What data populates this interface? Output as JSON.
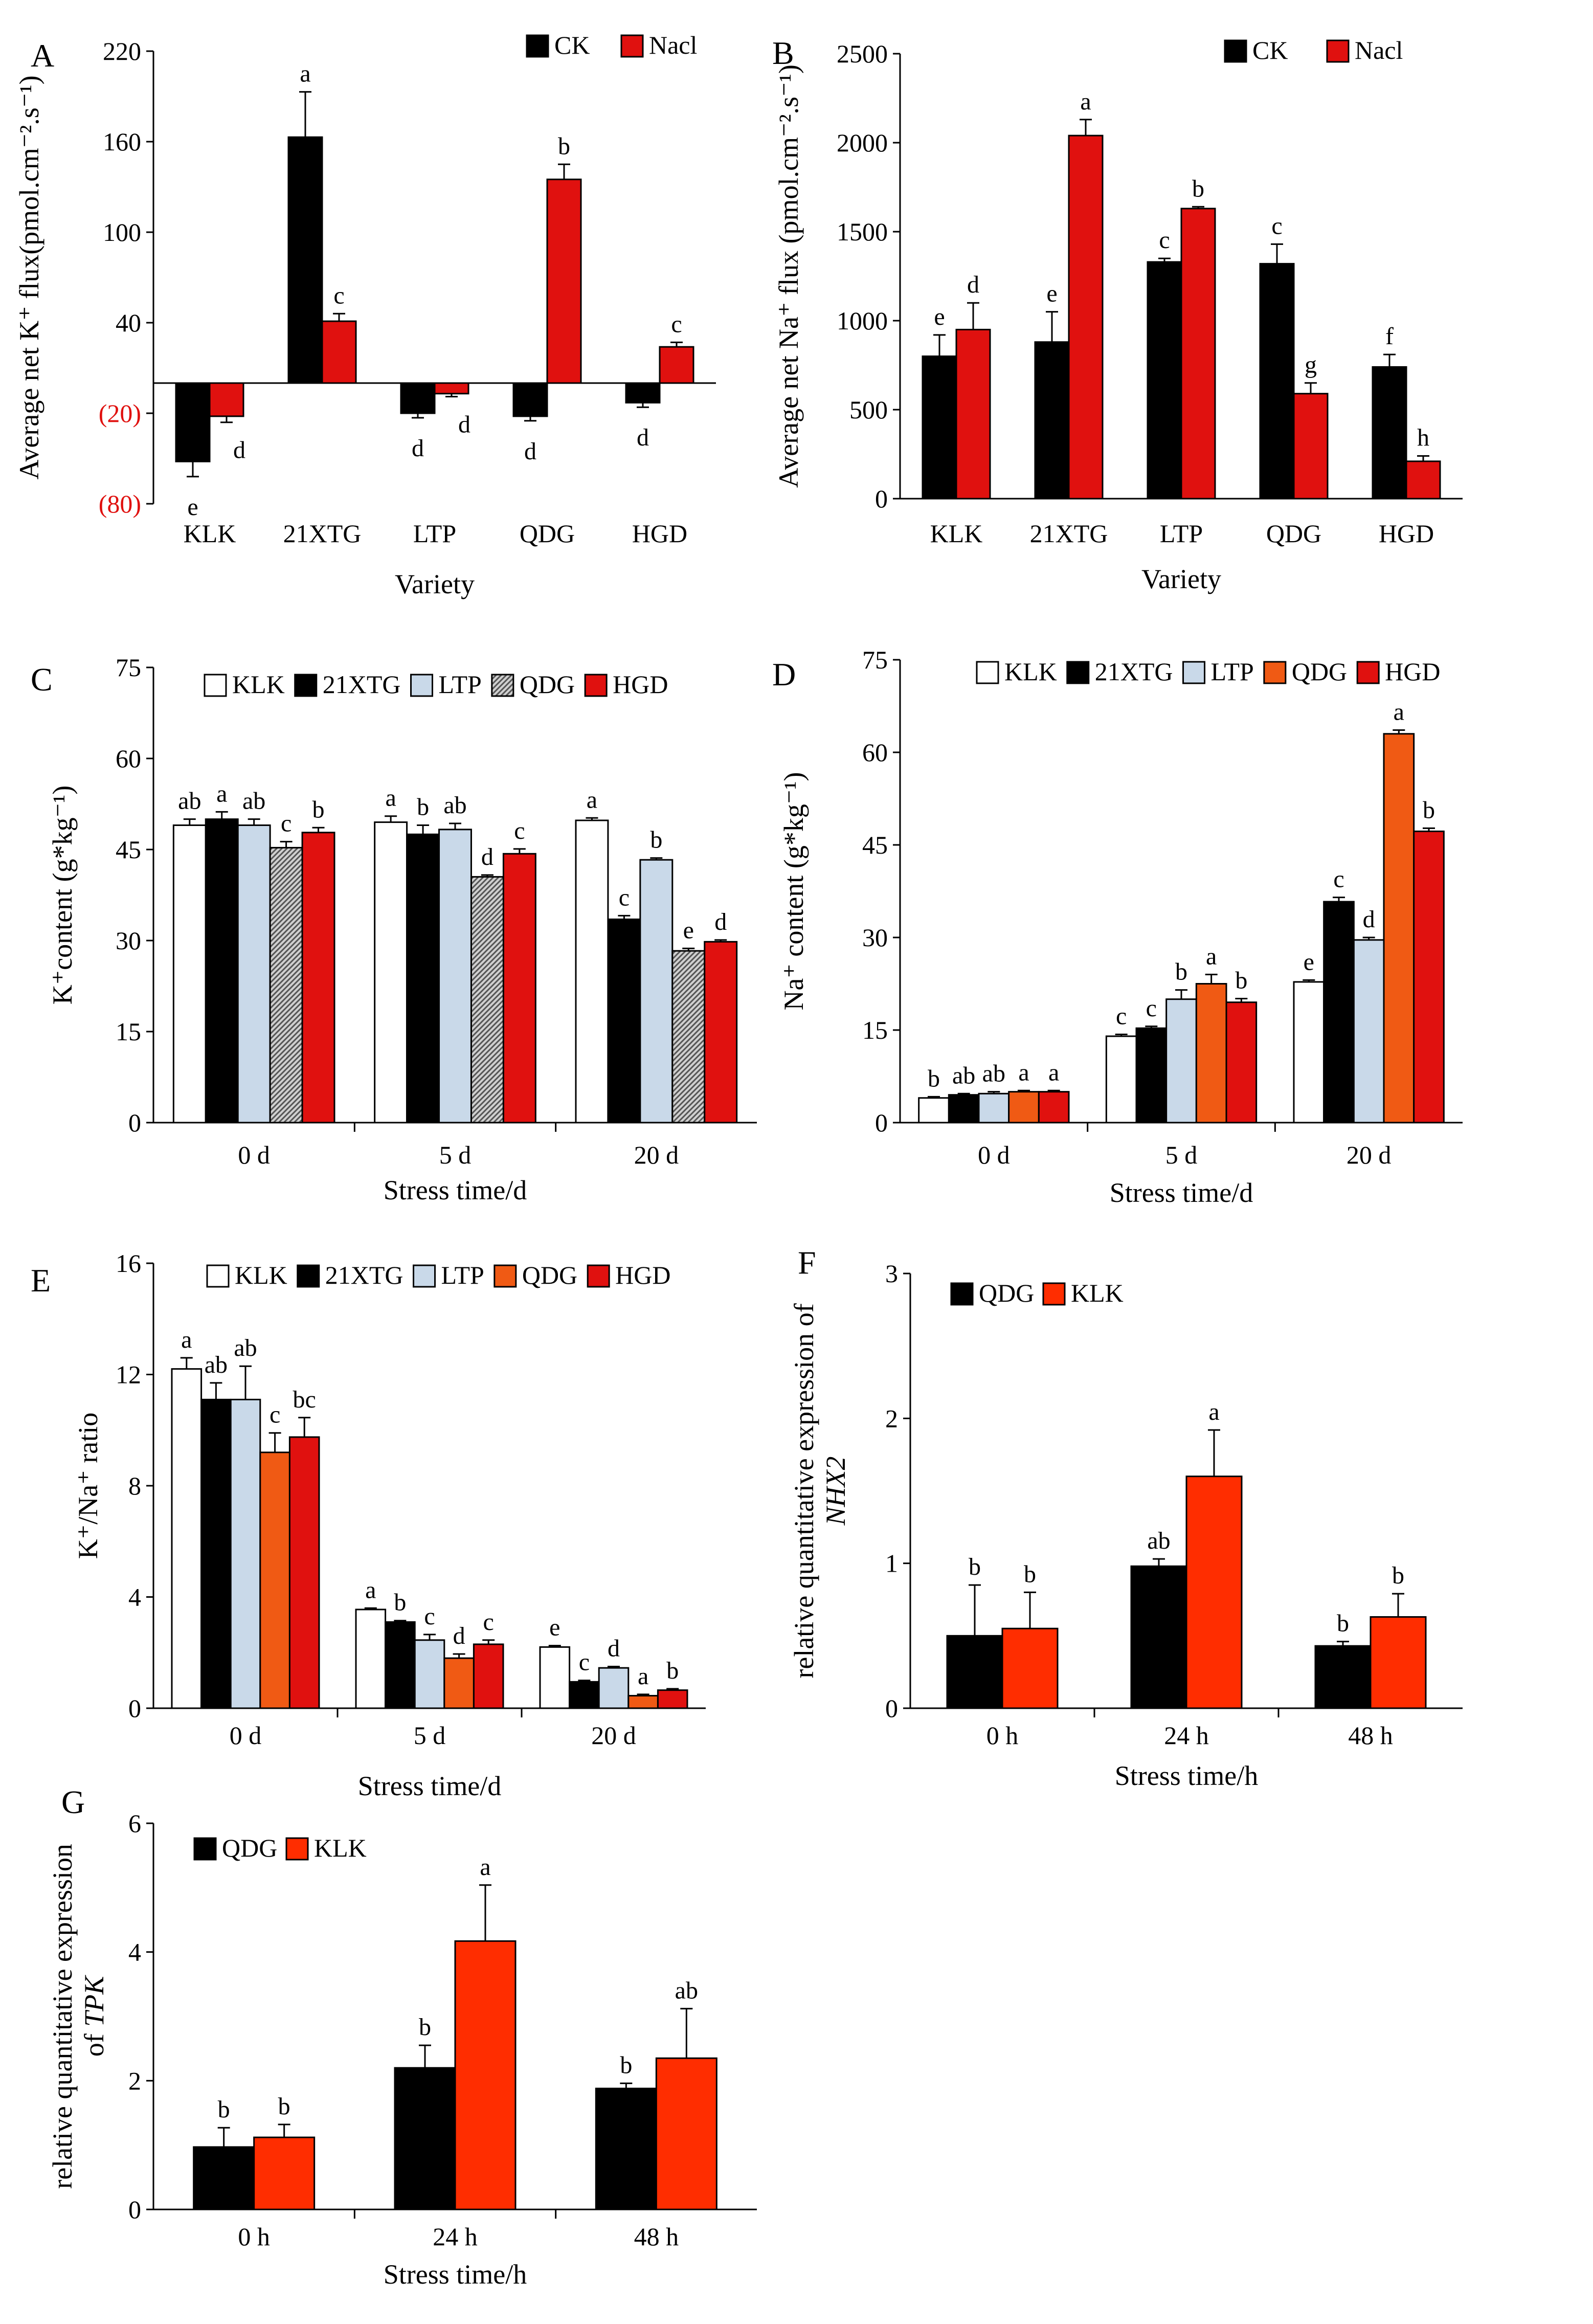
{
  "colors": {
    "black": "#000000",
    "red": "#e0110f",
    "red_orange": "#ff2d00",
    "white": "#ffffff",
    "light_blue": "#c9d9e9",
    "hatched_gray": "#8a8a8a",
    "orange": "#f05a14",
    "negative_tick": "#e0110f"
  },
  "chart_data": [
    {
      "panel": "A",
      "type": "bar",
      "xlabel": "Variety",
      "ylabel": "Average net K⁺ flux(pmol.cm⁻².s⁻¹)",
      "ylim": [
        -80,
        220
      ],
      "yticks": [
        220,
        160,
        100,
        40,
        -20,
        -80
      ],
      "ytick_labels": [
        "220",
        "160",
        "100",
        "40",
        "(20)",
        "(80)"
      ],
      "negative_ticks_red": true,
      "categories": [
        "KLK",
        "21XTG",
        "LTP",
        "QDG",
        "HGD"
      ],
      "series": [
        {
          "name": "CK",
          "color": "black",
          "values": [
            -52,
            163,
            -20,
            -22,
            -13
          ],
          "errors": [
            10,
            30,
            3,
            3,
            3
          ],
          "letters": [
            "e",
            "a",
            "d",
            "d",
            "d"
          ]
        },
        {
          "name": "Nacl",
          "color": "red",
          "values": [
            -22,
            41,
            -7,
            135,
            24
          ],
          "errors": [
            4,
            5,
            2,
            10,
            3
          ],
          "letters": [
            "d",
            "c",
            "d",
            "b",
            "c"
          ]
        }
      ],
      "legend": [
        "CK",
        "Nacl"
      ]
    },
    {
      "panel": "B",
      "type": "bar",
      "xlabel": "Variety",
      "ylabel": "Average net Na⁺ flux (pmol.cm⁻².s⁻¹)",
      "ylim": [
        0,
        2500
      ],
      "yticks": [
        0,
        500,
        1000,
        1500,
        2000,
        2500
      ],
      "categories": [
        "KLK",
        "21XTG",
        "LTP",
        "QDG",
        "HGD"
      ],
      "series": [
        {
          "name": "CK",
          "color": "black",
          "values": [
            800,
            880,
            1330,
            1320,
            740
          ],
          "errors": [
            120,
            170,
            20,
            110,
            70
          ],
          "letters": [
            "e",
            "e",
            "c",
            "c",
            "f"
          ]
        },
        {
          "name": "Nacl",
          "color": "red",
          "values": [
            950,
            2040,
            1630,
            590,
            210
          ],
          "errors": [
            150,
            90,
            10,
            60,
            30
          ],
          "letters": [
            "d",
            "a",
            "b",
            "g",
            "h"
          ]
        }
      ],
      "legend": [
        "CK",
        "Nacl"
      ]
    },
    {
      "panel": "C",
      "type": "bar",
      "xlabel": "Stress time/d",
      "ylabel": "K⁺content (g*kg⁻¹)",
      "ylim": [
        0,
        75
      ],
      "yticks": [
        0,
        15,
        30,
        45,
        60,
        75
      ],
      "categories": [
        "0 d",
        "5 d",
        "20 d"
      ],
      "series": [
        {
          "name": "KLK",
          "color": "white",
          "values": [
            49,
            49.5,
            49.8
          ],
          "errors": [
            1,
            1,
            0.4
          ],
          "letters": [
            "ab",
            "a",
            "a"
          ]
        },
        {
          "name": "21XTG",
          "color": "black",
          "values": [
            50,
            47.5,
            33.5
          ],
          "errors": [
            1.2,
            1.5,
            0.6
          ],
          "letters": [
            "a",
            "b",
            "c"
          ]
        },
        {
          "name": "LTP",
          "color": "light_blue",
          "values": [
            49,
            48.3,
            43.3
          ],
          "errors": [
            1,
            1,
            0.3
          ],
          "letters": [
            "ab",
            "ab",
            "b"
          ]
        },
        {
          "name": "QDG",
          "color": "hatched_gray",
          "values": [
            45.3,
            40.5,
            28.3
          ],
          "errors": [
            1,
            0.3,
            0.4
          ],
          "letters": [
            "c",
            "d",
            "e"
          ]
        },
        {
          "name": "HGD",
          "color": "red",
          "values": [
            47.8,
            44.3,
            29.8
          ],
          "errors": [
            0.8,
            0.8,
            0.3
          ],
          "letters": [
            "b",
            "c",
            "d"
          ]
        }
      ],
      "legend": [
        "KLK",
        "21XTG",
        "LTP",
        "QDG",
        "HGD"
      ]
    },
    {
      "panel": "D",
      "type": "bar",
      "xlabel": "Stress time/d",
      "ylabel": "Na⁺ content (g*kg⁻¹)",
      "ylim": [
        0,
        75
      ],
      "yticks": [
        0,
        15,
        30,
        45,
        60,
        75
      ],
      "categories": [
        "0 d",
        "5 d",
        "20 d"
      ],
      "series": [
        {
          "name": "KLK",
          "color": "white",
          "values": [
            4,
            14,
            22.8
          ],
          "errors": [
            0.2,
            0.3,
            0.3
          ],
          "letters": [
            "b",
            "c",
            "e"
          ]
        },
        {
          "name": "21XTG",
          "color": "black",
          "values": [
            4.5,
            15.3,
            35.8
          ],
          "errors": [
            0.2,
            0.3,
            0.7
          ],
          "letters": [
            "ab",
            "c",
            "c"
          ]
        },
        {
          "name": "LTP",
          "color": "light_blue",
          "values": [
            4.7,
            20,
            29.6
          ],
          "errors": [
            0.3,
            1.5,
            0.4
          ],
          "letters": [
            "ab",
            "b",
            "d"
          ]
        },
        {
          "name": "QDG",
          "color": "orange",
          "values": [
            5,
            22.5,
            63
          ],
          "errors": [
            0.2,
            1.5,
            0.6
          ],
          "letters": [
            "a",
            "a",
            "a"
          ]
        },
        {
          "name": "HGD",
          "color": "red",
          "values": [
            5,
            19.5,
            47.2
          ],
          "errors": [
            0.2,
            0.6,
            0.5
          ],
          "letters": [
            "a",
            "b",
            "b"
          ]
        }
      ],
      "legend": [
        "KLK",
        "21XTG",
        "LTP",
        "QDG",
        "HGD"
      ]
    },
    {
      "panel": "E",
      "type": "bar",
      "xlabel": "Stress time/d",
      "ylabel": "K⁺/Na⁺ ratio",
      "ylim": [
        0,
        16
      ],
      "yticks": [
        0,
        4,
        8,
        12,
        16
      ],
      "categories": [
        "0 d",
        "5 d",
        "20 d"
      ],
      "series": [
        {
          "name": "KLK",
          "color": "white",
          "values": [
            12.2,
            3.55,
            2.2
          ],
          "errors": [
            0.4,
            0.05,
            0.05
          ],
          "letters": [
            "a",
            "a",
            "e"
          ]
        },
        {
          "name": "21XTG",
          "color": "black",
          "values": [
            11.1,
            3.1,
            0.95
          ],
          "errors": [
            0.6,
            0.05,
            0.05
          ],
          "letters": [
            "ab",
            "b",
            "c"
          ]
        },
        {
          "name": "LTP",
          "color": "light_blue",
          "values": [
            11.1,
            2.45,
            1.45
          ],
          "errors": [
            1.2,
            0.2,
            0.05
          ],
          "letters": [
            "ab",
            "c",
            "d"
          ]
        },
        {
          "name": "QDG",
          "color": "orange",
          "values": [
            9.2,
            1.8,
            0.45
          ],
          "errors": [
            0.7,
            0.15,
            0.05
          ],
          "letters": [
            "c",
            "d",
            "a"
          ]
        },
        {
          "name": "HGD",
          "color": "red",
          "values": [
            9.75,
            2.3,
            0.65
          ],
          "errors": [
            0.7,
            0.15,
            0.05
          ],
          "letters": [
            "bc",
            "c",
            "b"
          ]
        }
      ],
      "legend": [
        "KLK",
        "21XTG",
        "LTP",
        "QDG",
        "HGD"
      ]
    },
    {
      "panel": "F",
      "type": "bar",
      "xlabel": "Stress time/h",
      "ylabel": "relative quantitative expression of",
      "ylabel_gene": "NHX2",
      "ylim": [
        0,
        3
      ],
      "yticks": [
        0,
        1,
        2,
        3
      ],
      "categories": [
        "0 h",
        "24 h",
        "48 h"
      ],
      "series": [
        {
          "name": "QDG",
          "color": "black",
          "values": [
            0.5,
            0.98,
            0.43
          ],
          "errors": [
            0.35,
            0.05,
            0.03
          ],
          "letters": [
            "b",
            "ab",
            "b"
          ]
        },
        {
          "name": "KLK",
          "color": "red_orange",
          "values": [
            0.55,
            1.6,
            0.63
          ],
          "errors": [
            0.25,
            0.32,
            0.16
          ],
          "letters": [
            "b",
            "a",
            "b"
          ]
        }
      ],
      "legend": [
        "QDG",
        "KLK"
      ]
    },
    {
      "panel": "G",
      "type": "bar",
      "xlabel": "Stress time/h",
      "ylabel": "relative quantitative expression",
      "ylabel2": "of",
      "ylabel_gene": "TPK",
      "ylim": [
        0,
        6
      ],
      "yticks": [
        0,
        2,
        4,
        6
      ],
      "categories": [
        "0 h",
        "24 h",
        "48 h"
      ],
      "series": [
        {
          "name": "QDG",
          "color": "black",
          "values": [
            0.97,
            2.2,
            1.88
          ],
          "errors": [
            0.3,
            0.35,
            0.08
          ],
          "letters": [
            "b",
            "b",
            "b"
          ]
        },
        {
          "name": "KLK",
          "color": "red_orange",
          "values": [
            1.12,
            4.17,
            2.35
          ],
          "errors": [
            0.2,
            0.87,
            0.77
          ],
          "letters": [
            "b",
            "a",
            "ab"
          ]
        }
      ],
      "legend": [
        "QDG",
        "KLK"
      ]
    }
  ]
}
